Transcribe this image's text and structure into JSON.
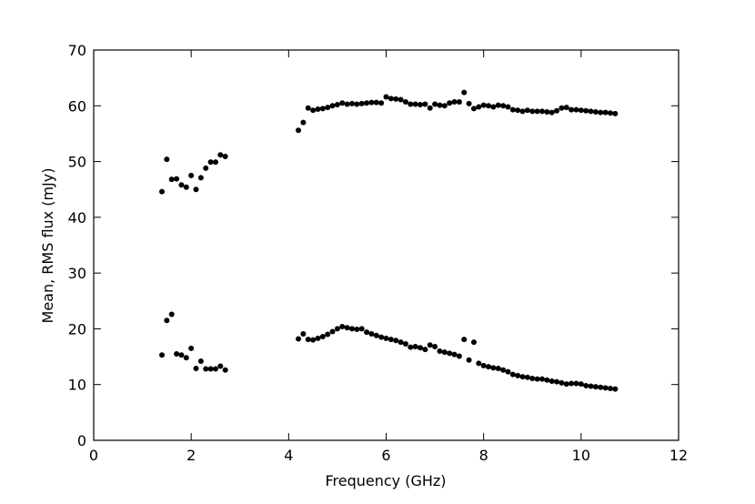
{
  "chart_data": {
    "type": "scatter",
    "xlabel": "Frequency (GHz)",
    "ylabel": "Mean, RMS flux (mJy)",
    "xlim": [
      0,
      12
    ],
    "xticks": [
      0,
      2,
      4,
      6,
      8,
      10,
      12
    ],
    "ylim": [
      0,
      70
    ],
    "yticks": [
      0,
      10,
      20,
      30,
      40,
      50,
      60,
      70
    ],
    "x": [
      1.4,
      1.5,
      1.6,
      1.7,
      1.8,
      1.9,
      2.0,
      2.1,
      2.2,
      2.3,
      2.4,
      2.5,
      2.6,
      2.7,
      4.2,
      4.3,
      4.4,
      4.5,
      4.6,
      4.7,
      4.8,
      4.9,
      5.0,
      5.1,
      5.2,
      5.3,
      5.4,
      5.5,
      5.6,
      5.7,
      5.8,
      5.9,
      6.0,
      6.1,
      6.2,
      6.3,
      6.4,
      6.5,
      6.6,
      6.7,
      6.8,
      6.9,
      7.0,
      7.1,
      7.2,
      7.3,
      7.4,
      7.5,
      7.6,
      7.7,
      7.8,
      7.9,
      8.0,
      8.1,
      8.2,
      8.3,
      8.4,
      8.5,
      8.6,
      8.7,
      8.8,
      8.9,
      9.0,
      9.1,
      9.2,
      9.3,
      9.4,
      9.5,
      9.6,
      9.7,
      9.8,
      9.9,
      10.0,
      10.1,
      10.2,
      10.3,
      10.4,
      10.5,
      10.6,
      10.7
    ],
    "series": [
      {
        "color": "#000000",
        "values": [
          44.6,
          50.4,
          46.8,
          46.9,
          45.8,
          45.4,
          47.5,
          45.0,
          47.1,
          48.8,
          49.9,
          49.9,
          51.2,
          50.9,
          55.6,
          57.0,
          59.6,
          59.2,
          59.4,
          59.5,
          59.7,
          60.0,
          60.2,
          60.5,
          60.3,
          60.4,
          60.3,
          60.4,
          60.5,
          60.6,
          60.6,
          60.5,
          61.6,
          61.3,
          61.2,
          61.1,
          60.7,
          60.3,
          60.3,
          60.2,
          60.3,
          59.6,
          60.3,
          60.1,
          60.0,
          60.5,
          60.7,
          60.7,
          62.4,
          60.4,
          59.5,
          59.8,
          60.1,
          60.0,
          59.8,
          60.1,
          60.0,
          59.8,
          59.3,
          59.2,
          59.0,
          59.2,
          59.0,
          59.0,
          59.0,
          58.9,
          58.8,
          59.1,
          59.6,
          59.7,
          59.3,
          59.3,
          59.2,
          59.1,
          59.0,
          58.9,
          58.8,
          58.8,
          58.7,
          58.6
        ]
      },
      {
        "color": "#000000",
        "values": [
          15.3,
          21.5,
          22.6,
          15.5,
          15.3,
          14.8,
          16.5,
          12.9,
          14.2,
          12.8,
          12.8,
          12.8,
          13.3,
          12.6,
          18.2,
          19.1,
          18.1,
          18.0,
          18.3,
          18.6,
          19.0,
          19.5,
          20.0,
          20.4,
          20.2,
          20.0,
          19.9,
          20.0,
          19.4,
          19.1,
          18.8,
          18.5,
          18.3,
          18.1,
          17.9,
          17.6,
          17.3,
          16.7,
          16.8,
          16.6,
          16.3,
          17.1,
          16.8,
          16.0,
          15.8,
          15.6,
          15.4,
          15.1,
          18.1,
          14.4,
          17.6,
          13.8,
          13.4,
          13.2,
          13.0,
          12.9,
          12.6,
          12.3,
          11.8,
          11.6,
          11.4,
          11.3,
          11.1,
          11.0,
          11.0,
          10.8,
          10.6,
          10.5,
          10.3,
          10.1,
          10.2,
          10.2,
          10.1,
          9.8,
          9.7,
          9.6,
          9.5,
          9.4,
          9.3,
          9.2
        ]
      }
    ]
  }
}
